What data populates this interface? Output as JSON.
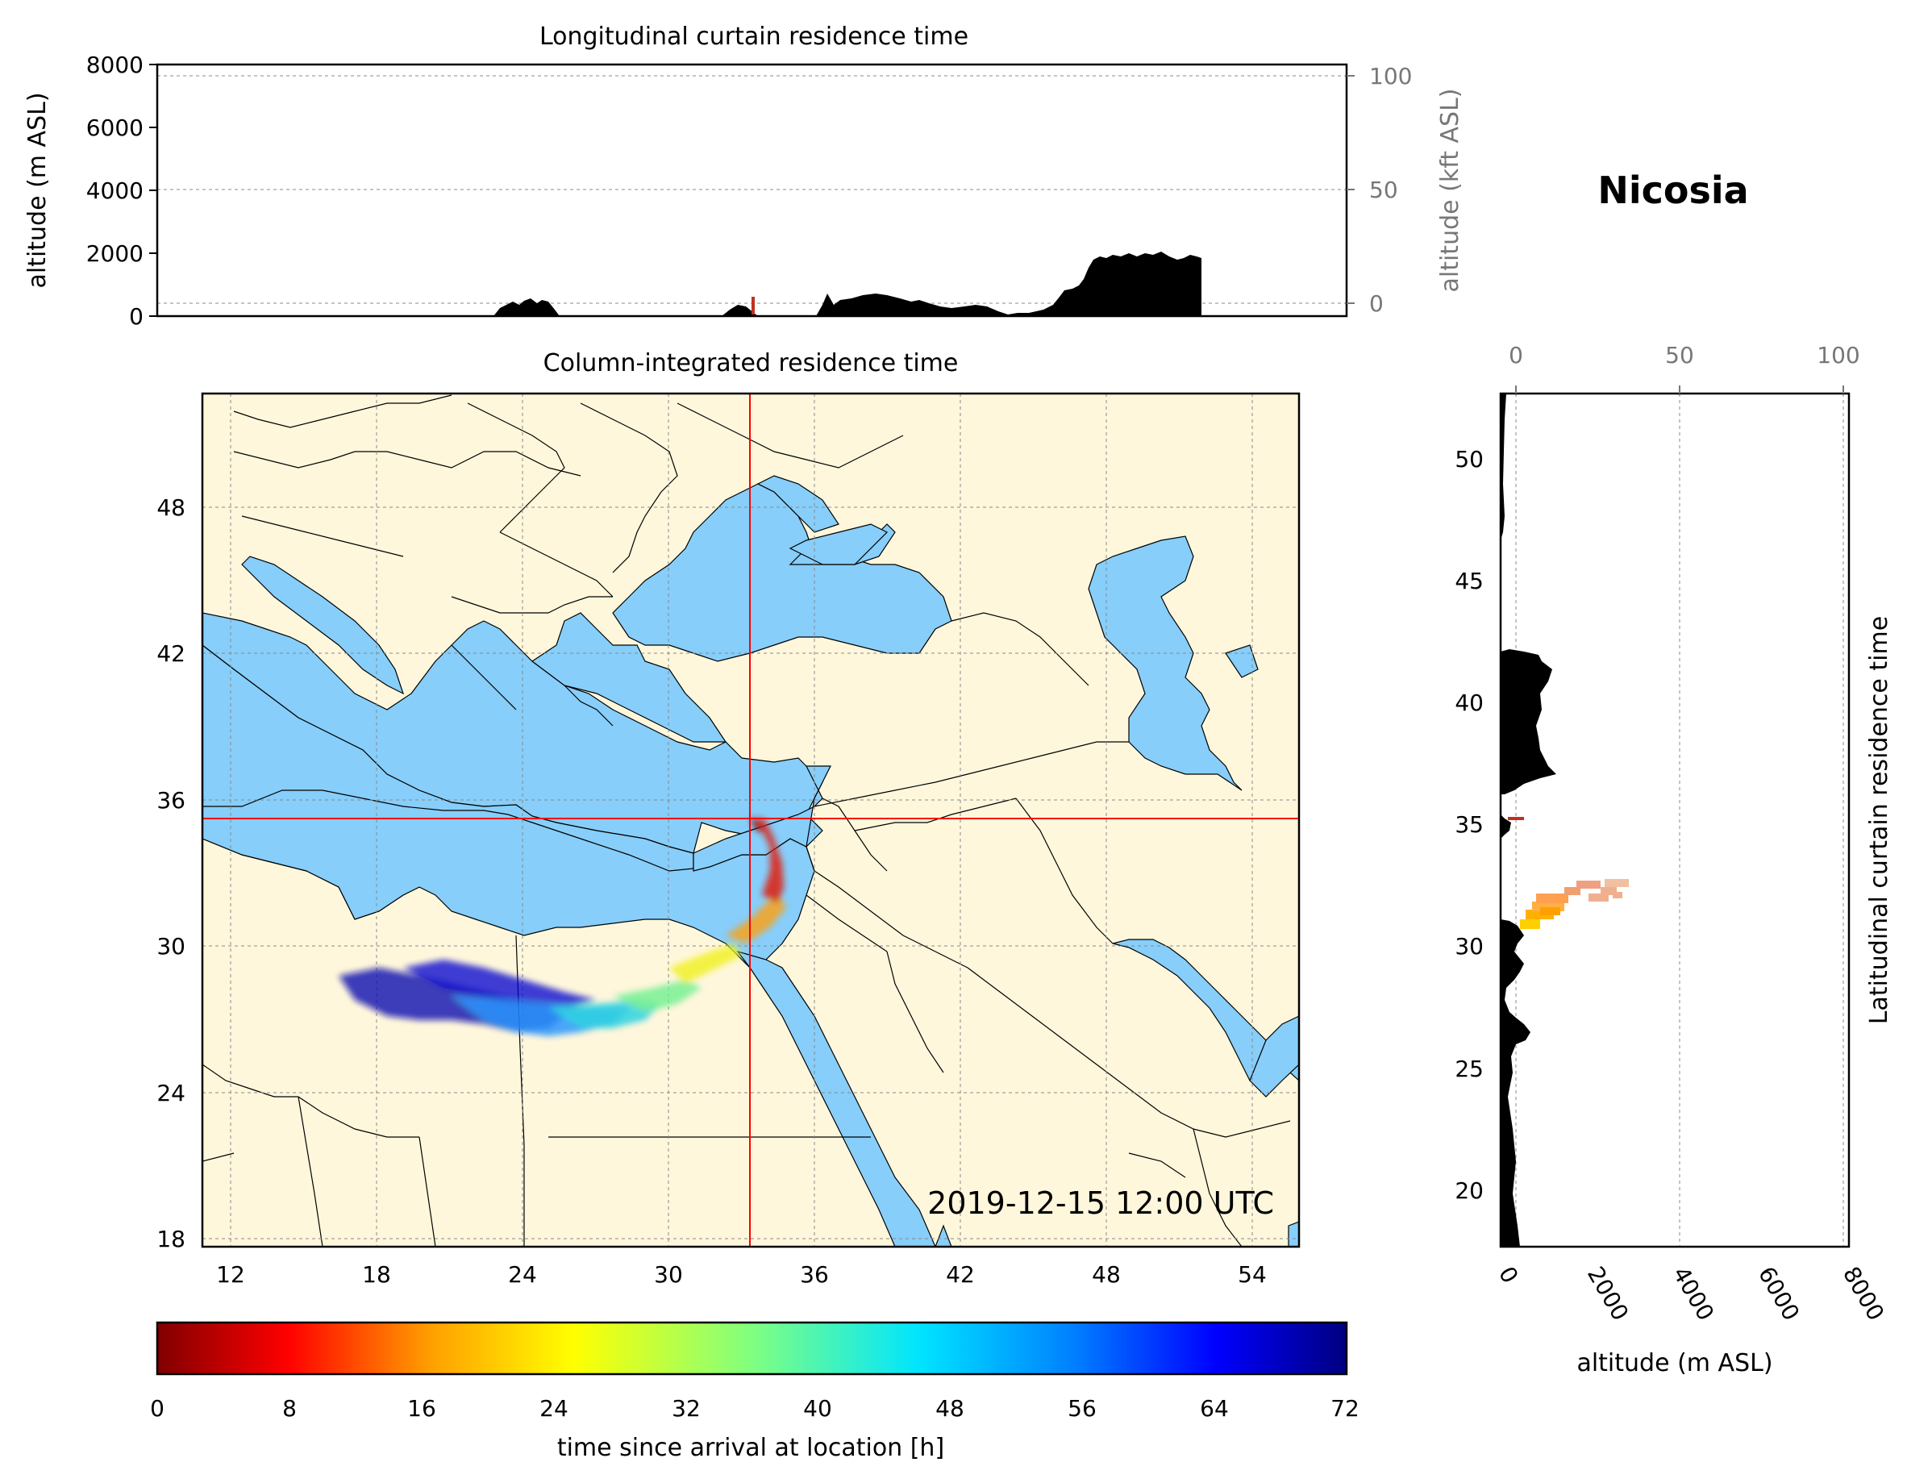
{
  "station": {
    "name": "Nicosia",
    "lon": 33.4,
    "lat": 35.2
  },
  "timestamp": "2019-12-15 12:00 UTC",
  "top_panel": {
    "title": "Longitudinal curtain residence time",
    "ylabel_left": "altitude (m ASL)",
    "ylabel_right": "altitude (kft ASL)",
    "left_ticks": [
      "0",
      "2000",
      "4000",
      "6000",
      "8000"
    ],
    "right_ticks": [
      "0",
      "50",
      "100"
    ]
  },
  "map_panel": {
    "title": "Column-integrated residence time",
    "x_ticks": [
      "12",
      "18",
      "24",
      "30",
      "36",
      "42",
      "48",
      "54"
    ],
    "y_ticks": [
      "18",
      "24",
      "30",
      "36",
      "42",
      "48"
    ],
    "lon_range": [
      10.8,
      55.8
    ],
    "lat_range": [
      18,
      53
    ]
  },
  "right_panel": {
    "title": "Latitudinal curtain residence time",
    "xlabel": "altitude (m ASL)",
    "bottom_ticks": [
      "0",
      "2000",
      "4000",
      "6000",
      "8000"
    ],
    "top_ticks": [
      "0",
      "50",
      "100"
    ],
    "lat_ticks": [
      "20",
      "25",
      "30",
      "35",
      "40",
      "45",
      "50"
    ]
  },
  "colorbar": {
    "label": "time since arrival at location [h]",
    "ticks": [
      "0",
      "8",
      "16",
      "24",
      "32",
      "40",
      "48",
      "56",
      "64",
      "72"
    ],
    "range": [
      0,
      72
    ],
    "colormap": "jet_r"
  },
  "colors": {
    "land": "#fff7dc",
    "sea": "#87cefa",
    "crosshair": "#ff0000",
    "terrain": "#000000"
  }
}
